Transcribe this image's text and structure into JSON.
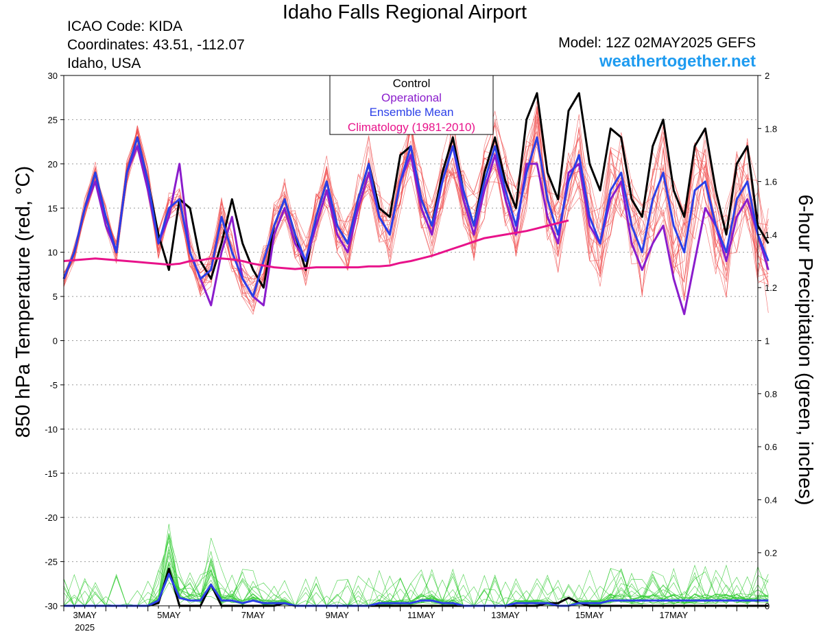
{
  "header": {
    "title": "Idaho Falls Regional Airport",
    "icao": "ICAO Code: KIDA",
    "coords": "Coordinates: 43.51, -112.07",
    "region": "Idaho, USA",
    "model": "Model: 12Z 02MAY2025 GEFS",
    "site": "weathertogether.net"
  },
  "chart_data": {
    "type": "line",
    "y_left_label": "850 hPa Temperature (red, °C)",
    "y_right_label": "6-hour Precipitation (green, inches)",
    "y_left_range": [
      -30,
      30
    ],
    "y_left_ticks": [
      "30",
      "25",
      "20",
      "15",
      "10",
      "5",
      "0",
      "-5",
      "-10",
      "-15",
      "-20",
      "-25",
      "-30"
    ],
    "y_right_range": [
      0,
      2
    ],
    "y_right_ticks": [
      "2",
      "1.8",
      "1.6",
      "1.4",
      "1.2",
      "1",
      "0.8",
      "0.6",
      "0.4",
      "0.2",
      "0"
    ],
    "x_hours_range": [
      0,
      396
    ],
    "x_hours_note": "forecast hours after 12Z 02MAY2025, 6-hourly",
    "x_ticks": [
      {
        "hour": 12,
        "label": "3MAY",
        "sub": "2025"
      },
      {
        "hour": 60,
        "label": "5MAY",
        "sub": ""
      },
      {
        "hour": 108,
        "label": "7MAY",
        "sub": ""
      },
      {
        "hour": 156,
        "label": "9MAY",
        "sub": ""
      },
      {
        "hour": 204,
        "label": "11MAY",
        "sub": ""
      },
      {
        "hour": 252,
        "label": "13MAY",
        "sub": ""
      },
      {
        "hour": 300,
        "label": "15MAY",
        "sub": ""
      },
      {
        "hour": 348,
        "label": "17MAY",
        "sub": ""
      }
    ],
    "grid": "horizontal dotted",
    "legend": {
      "position": "top-center",
      "entries": [
        {
          "label": "Control",
          "color": "#000000"
        },
        {
          "label": "Operational",
          "color": "#8a1ccc"
        },
        {
          "label": "Ensemble Mean",
          "color": "#2b3fe8"
        },
        {
          "label": "Climatology (1981-2010)",
          "color": "#e8128a"
        }
      ]
    },
    "colors": {
      "control": "#000000",
      "operational": "#8a1ccc",
      "mean": "#2b3fe8",
      "climatology": "#e8128a",
      "members_temp": "#f05050",
      "members_precip": "#33cc33"
    },
    "series": [
      {
        "name": "Control",
        "axis": "left",
        "values": [
          7,
          10,
          15,
          19,
          14,
          10,
          19,
          23,
          18,
          12,
          8,
          16,
          15,
          9,
          7,
          11,
          16,
          11,
          8,
          6,
          13,
          16,
          12,
          8,
          14,
          18,
          13,
          11,
          16,
          20,
          15,
          14,
          21,
          22,
          16,
          13,
          19,
          23,
          17,
          13,
          19,
          23,
          18,
          15,
          25,
          28,
          19,
          16,
          26,
          28,
          20,
          17,
          24,
          23,
          16,
          14,
          22,
          25,
          17,
          14,
          22,
          24,
          17,
          12,
          20,
          22,
          13,
          11
        ]
      },
      {
        "name": "Operational",
        "axis": "left",
        "values": [
          7,
          10,
          15,
          18,
          13,
          10,
          19,
          22,
          17,
          11,
          14,
          20,
          10,
          7,
          4,
          10,
          14,
          7,
          5,
          4,
          12,
          15,
          11,
          9,
          13,
          17,
          12,
          10,
          15,
          19,
          14,
          12,
          18,
          21,
          15,
          12,
          18,
          22,
          16,
          12,
          17,
          21,
          16,
          12,
          20,
          20,
          14,
          11,
          19,
          20,
          13,
          11,
          16,
          18,
          11,
          8,
          11,
          13,
          7,
          3,
          9,
          15,
          13,
          9,
          14,
          16,
          12,
          8
        ]
      },
      {
        "name": "Ensemble Mean",
        "axis": "left",
        "values": [
          7,
          10,
          15,
          19,
          14,
          10,
          19,
          23,
          18,
          11,
          15,
          16,
          10,
          7,
          8,
          14,
          10,
          7,
          5,
          9,
          13,
          16,
          12,
          9,
          14,
          18,
          13,
          11,
          16,
          20,
          14,
          12,
          18,
          22,
          16,
          13,
          18,
          22,
          17,
          13,
          18,
          22,
          17,
          13,
          19,
          23,
          16,
          12,
          18,
          21,
          14,
          11,
          17,
          19,
          13,
          10,
          16,
          19,
          13,
          10,
          17,
          18,
          13,
          10,
          16,
          18,
          12,
          9
        ]
      },
      {
        "name": "Climatology (1981-2010)",
        "axis": "left",
        "values": [
          9,
          9.1,
          9.2,
          9.3,
          9.2,
          9.1,
          9.0,
          8.9,
          8.8,
          8.7,
          8.6,
          8.7,
          9.0,
          9.1,
          9.3,
          9.3,
          9.2,
          9.0,
          8.7,
          8.5,
          8.3,
          8.2,
          8.1,
          8.2,
          8.3,
          8.3,
          8.3,
          8.3,
          8.3,
          8.4,
          8.4,
          8.5,
          8.8,
          9.0,
          9.3,
          9.6,
          10,
          10.4,
          10.8,
          11.2,
          11.6,
          11.8,
          12.0,
          12.2,
          12.4,
          12.7,
          13.0,
          13.3,
          13.6
        ]
      },
      {
        "name": "Control",
        "axis": "right",
        "values": [
          0,
          0,
          0,
          0,
          0,
          0,
          0,
          0,
          0,
          0.01,
          0.14,
          0,
          0,
          0,
          0.08,
          0,
          0,
          0,
          0,
          0,
          0,
          0.01,
          0,
          0,
          0,
          0,
          0,
          0,
          0,
          0,
          0,
          0,
          0,
          0,
          0,
          0,
          0,
          0,
          0,
          0,
          0,
          0,
          0,
          0,
          0,
          0,
          0.01,
          0.01,
          0.03,
          0.01,
          0,
          0,
          0,
          0,
          0,
          0,
          0,
          0,
          0,
          0,
          0,
          0,
          0,
          0,
          0,
          0,
          0,
          0
        ]
      },
      {
        "name": "Ensemble Mean",
        "axis": "right",
        "values": [
          0,
          0,
          0,
          0,
          0,
          0,
          0,
          0,
          0,
          0.02,
          0.12,
          0.03,
          0.02,
          0.02,
          0.08,
          0.02,
          0.02,
          0.01,
          0.02,
          0.01,
          0.01,
          0.01,
          0,
          0,
          0,
          0,
          0,
          0,
          0,
          0,
          0.01,
          0.01,
          0.01,
          0.01,
          0.02,
          0.02,
          0.01,
          0.01,
          0,
          0,
          0,
          0,
          0,
          0.01,
          0.01,
          0.01,
          0.01,
          0,
          0,
          0.01,
          0.01,
          0.01,
          0.02,
          0.02,
          0.02,
          0.02,
          0.02,
          0.02,
          0.02,
          0.02,
          0.02,
          0.02,
          0.02,
          0.02,
          0.02,
          0.02,
          0.02,
          0.02
        ]
      }
    ]
  }
}
